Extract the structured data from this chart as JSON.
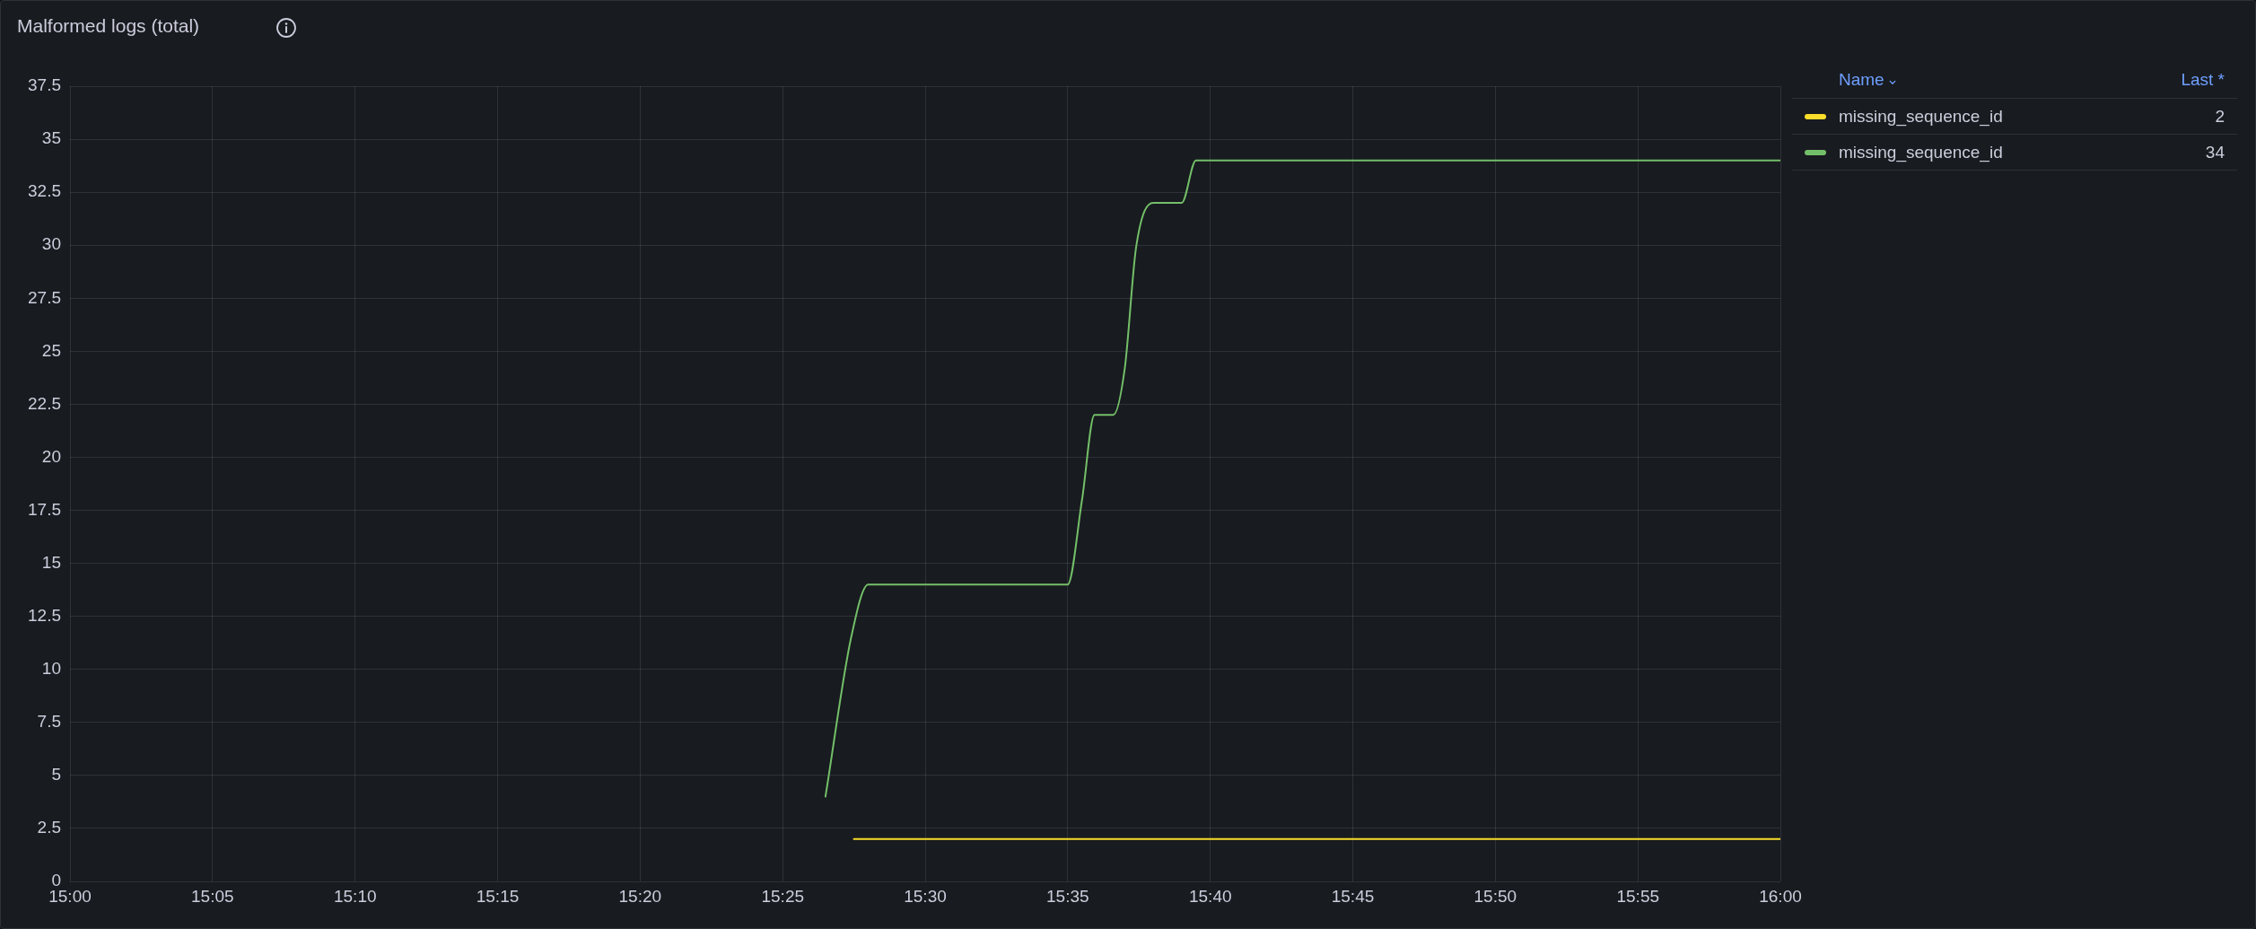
{
  "chart_data": {
    "type": "line",
    "title": "Malformed logs (total)",
    "annotations": [
      "Name",
      "Last *",
      "2",
      "34"
    ],
    "series": [
      {
        "name": "missing_sequence_id",
        "color": "#fade2a",
        "x": [
          15.4583,
          16
        ],
        "values": [
          2,
          2
        ]
      },
      {
        "name": "missing_sequence_id",
        "color": "#73bf69",
        "x": [
          15.4417,
          15.4567,
          15.4667,
          15.5833,
          15.5917,
          15.599,
          15.61,
          15.6167,
          15.6233,
          15.6333,
          15.65,
          15.6583,
          16
        ],
        "values": [
          4,
          11.5,
          14,
          14,
          18,
          22,
          22,
          24.2,
          29.9,
          32,
          32,
          34,
          34
        ]
      }
    ],
    "xlim": [
      15,
      16
    ],
    "xticks": [
      {
        "value": 15,
        "label": "15:00"
      },
      {
        "value": 15.0833,
        "label": "15:05"
      },
      {
        "value": 15.1667,
        "label": "15:10"
      },
      {
        "value": 15.25,
        "label": "15:15"
      },
      {
        "value": 15.3333,
        "label": "15:20"
      },
      {
        "value": 15.4167,
        "label": "15:25"
      },
      {
        "value": 15.5,
        "label": "15:30"
      },
      {
        "value": 15.5833,
        "label": "15:35"
      },
      {
        "value": 15.6667,
        "label": "15:40"
      },
      {
        "value": 15.75,
        "label": "15:45"
      },
      {
        "value": 15.8333,
        "label": "15:50"
      },
      {
        "value": 15.9167,
        "label": "15:55"
      },
      {
        "value": 16,
        "label": "16:00"
      }
    ],
    "ylim": [
      0,
      37.5
    ],
    "yticks": [
      0,
      2.5,
      5,
      7.5,
      10,
      12.5,
      15,
      17.5,
      20,
      22.5,
      25,
      27.5,
      30,
      32.5,
      35,
      37.5
    ],
    "grid": true,
    "legend": "top right"
  }
}
